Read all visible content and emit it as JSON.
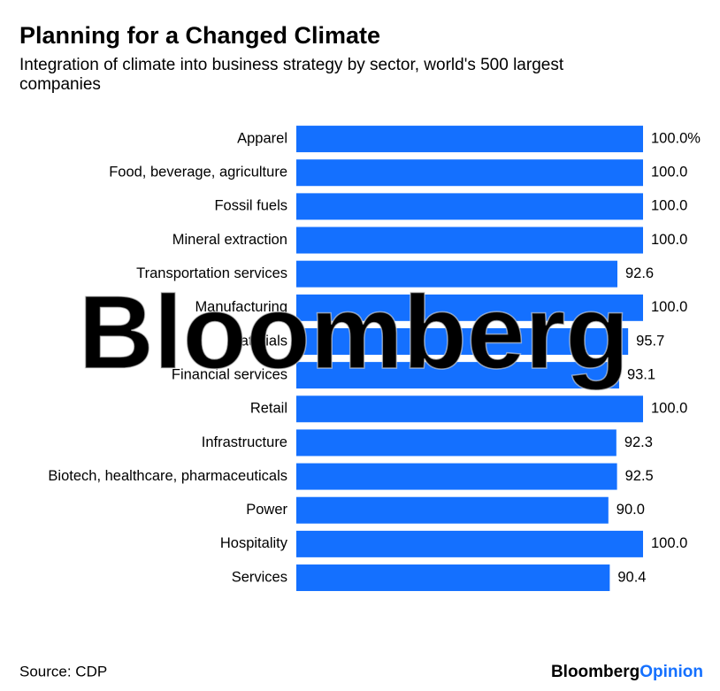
{
  "chart_data": {
    "type": "barh",
    "title": "Planning for a Changed Climate",
    "subtitle": "Integration of climate into business strategy by sector, world's 500 largest companies",
    "categories": [
      "Apparel",
      "Food, beverage, agriculture",
      "Fossil fuels",
      "Mineral extraction",
      "Transportation services",
      "Manufacturing",
      "Materials",
      "Financial services",
      "Retail",
      "Infrastructure",
      "Biotech, healthcare, pharmaceuticals",
      "Power",
      "Hospitality",
      "Services"
    ],
    "values": [
      100,
      100,
      100,
      100,
      92.6,
      100,
      95.7,
      93.1,
      100,
      92.3,
      92.5,
      90,
      100,
      90.4
    ],
    "value_labels": [
      "100.0%",
      "100.0",
      "100.0",
      "100.0",
      "92.6",
      "100.0",
      "95.7",
      "93.1",
      "100.0",
      "92.3",
      "92.5",
      "90.0",
      "100.0",
      "90.4"
    ],
    "color": "#1470ff",
    "xlim": [
      0,
      100
    ],
    "source": "Source: CDP",
    "watermark": "Bloomberg",
    "brand": "Bloomberg",
    "brand_suffix": "Opinion"
  }
}
